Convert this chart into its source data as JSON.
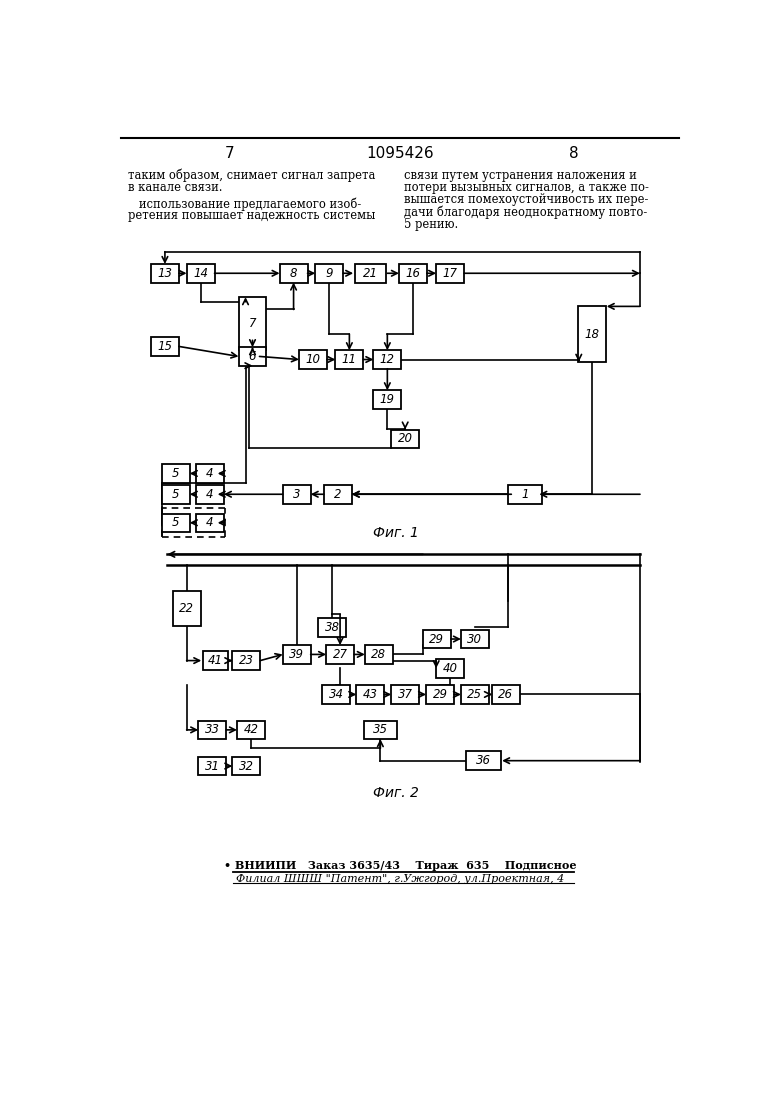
{
  "page_number_left": "7",
  "page_number_center": "1095426",
  "page_number_right": "8",
  "fig1_label": "Фиг. 1",
  "fig2_label": "Фиг. 2",
  "footer_line1": "• ВНИИПИ   Заказ 3635/43    Тираж  635    Подписное",
  "footer_line2": "Филиал ШШШ \"Патент\", г.Ужгород, ул.Проектная, 4",
  "text_left_1": "таким образом, снимает сигнал запрета",
  "text_left_2": "в канале связи.",
  "text_left_3": "   использование предлагаемого изоб-",
  "text_left_4": "ретения повышает надежность системы",
  "text_right_1": "связи путем устранения наложения и",
  "text_right_2": "потери вызывных сигналов, а также по-",
  "text_right_3": "вышается помехоустойчивость их пере-",
  "text_right_4": "дачи благодаря неоднократному повто-",
  "text_right_5": "5 рению.",
  "bg_color": "#ffffff"
}
